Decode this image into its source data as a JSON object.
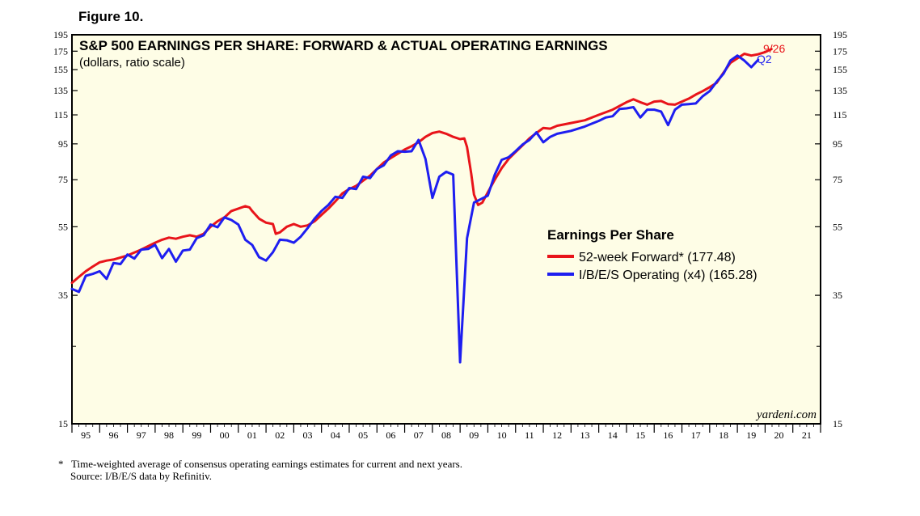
{
  "figure_label": "Figure 10.",
  "watermark": "yardeni.com",
  "footnote": {
    "line1_marker": "*",
    "line1": "Time-weighted average of consensus operating earnings estimates for current and next years.",
    "line2": "Source: I/B/E/S data by Refinitiv."
  },
  "colors": {
    "plot_background": "#fefde6",
    "forward": "#e8141a",
    "actual": "#1e1ef0"
  },
  "chart_data": {
    "type": "line",
    "scale": "log",
    "title": "S&P 500 EARNINGS PER SHARE: FORWARD & ACTUAL OPERATING EARNINGS",
    "subtitle": "(dollars, ratio scale)",
    "ylim": [
      15,
      195
    ],
    "xlim": [
      1994.5,
      2021.5
    ],
    "yticks": [
      195,
      175,
      155,
      135,
      115,
      95,
      75,
      55,
      35,
      15
    ],
    "xtick_labels": [
      "95",
      "96",
      "97",
      "98",
      "99",
      "00",
      "01",
      "02",
      "03",
      "04",
      "05",
      "06",
      "07",
      "08",
      "09",
      "10",
      "11",
      "12",
      "13",
      "14",
      "15",
      "16",
      "17",
      "18",
      "19",
      "20",
      "21"
    ],
    "legend": {
      "title": "Earnings Per Share",
      "position": "center-right",
      "entries": [
        "52-week Forward* (177.48)",
        "I/B/E/S Operating (x4) (165.28)"
      ]
    },
    "end_labels": {
      "forward": "9/26",
      "actual": "Q2"
    },
    "series": [
      {
        "name": "52-week Forward* (177.48)",
        "color": "#e8141a",
        "points": [
          [
            1994.5,
            38.0
          ],
          [
            1994.75,
            39.5
          ],
          [
            1995.0,
            41.0
          ],
          [
            1995.25,
            42.3
          ],
          [
            1995.5,
            43.5
          ],
          [
            1995.75,
            44.0
          ],
          [
            1996.0,
            44.3
          ],
          [
            1996.5,
            45.5
          ],
          [
            1997.0,
            47.3
          ],
          [
            1997.5,
            49.5
          ],
          [
            1997.75,
            50.5
          ],
          [
            1998.0,
            51.2
          ],
          [
            1998.25,
            50.8
          ],
          [
            1998.5,
            51.5
          ],
          [
            1998.75,
            52.0
          ],
          [
            1999.0,
            51.5
          ],
          [
            1999.25,
            52.5
          ],
          [
            1999.5,
            55.0
          ],
          [
            1999.75,
            57.0
          ],
          [
            2000.0,
            58.5
          ],
          [
            2000.25,
            61.0
          ],
          [
            2000.5,
            62.0
          ],
          [
            2000.75,
            63.0
          ],
          [
            2000.9,
            62.5
          ],
          [
            2001.0,
            61.0
          ],
          [
            2001.25,
            58.0
          ],
          [
            2001.5,
            56.5
          ],
          [
            2001.75,
            56.0
          ],
          [
            2001.85,
            52.5
          ],
          [
            2002.0,
            53.0
          ],
          [
            2002.25,
            55.0
          ],
          [
            2002.5,
            56.0
          ],
          [
            2002.75,
            55.0
          ],
          [
            2003.0,
            55.5
          ],
          [
            2003.25,
            57.0
          ],
          [
            2003.5,
            59.5
          ],
          [
            2003.75,
            62.0
          ],
          [
            2004.0,
            65.0
          ],
          [
            2004.25,
            68.5
          ],
          [
            2004.5,
            70.5
          ],
          [
            2004.75,
            72.0
          ],
          [
            2005.0,
            74.5
          ],
          [
            2005.25,
            77.0
          ],
          [
            2005.5,
            80.5
          ],
          [
            2005.75,
            84.0
          ],
          [
            2006.0,
            86.5
          ],
          [
            2006.25,
            89.0
          ],
          [
            2006.5,
            91.5
          ],
          [
            2006.75,
            93.5
          ],
          [
            2007.0,
            96.0
          ],
          [
            2007.25,
            99.5
          ],
          [
            2007.5,
            102.0
          ],
          [
            2007.75,
            103.0
          ],
          [
            2008.0,
            101.5
          ],
          [
            2008.25,
            99.5
          ],
          [
            2008.5,
            98.0
          ],
          [
            2008.65,
            98.5
          ],
          [
            2008.75,
            93.0
          ],
          [
            2008.9,
            78.0
          ],
          [
            2009.0,
            68.0
          ],
          [
            2009.15,
            63.5
          ],
          [
            2009.3,
            64.5
          ],
          [
            2009.5,
            69.0
          ],
          [
            2009.75,
            75.0
          ],
          [
            2010.0,
            81.0
          ],
          [
            2010.25,
            86.0
          ],
          [
            2010.5,
            90.0
          ],
          [
            2010.75,
            94.0
          ],
          [
            2011.0,
            98.5
          ],
          [
            2011.25,
            102.0
          ],
          [
            2011.5,
            105.5
          ],
          [
            2011.75,
            105.0
          ],
          [
            2012.0,
            107.0
          ],
          [
            2012.5,
            109.0
          ],
          [
            2013.0,
            111.0
          ],
          [
            2013.5,
            115.0
          ],
          [
            2014.0,
            119.0
          ],
          [
            2014.5,
            125.0
          ],
          [
            2014.75,
            127.5
          ],
          [
            2015.0,
            125.0
          ],
          [
            2015.25,
            123.0
          ],
          [
            2015.5,
            125.5
          ],
          [
            2015.75,
            126.0
          ],
          [
            2016.0,
            123.5
          ],
          [
            2016.25,
            123.0
          ],
          [
            2016.5,
            125.5
          ],
          [
            2016.75,
            128.0
          ],
          [
            2017.0,
            131.5
          ],
          [
            2017.25,
            134.5
          ],
          [
            2017.5,
            138.0
          ],
          [
            2017.75,
            142.0
          ],
          [
            2018.0,
            152.0
          ],
          [
            2018.25,
            162.0
          ],
          [
            2018.5,
            167.0
          ],
          [
            2018.75,
            172.0
          ],
          [
            2019.0,
            170.0
          ],
          [
            2019.25,
            171.5
          ],
          [
            2019.5,
            174.0
          ],
          [
            2019.73,
            177.48
          ]
        ]
      },
      {
        "name": "I/B/E/S Operating (x4) (165.28)",
        "color": "#1e1ef0",
        "points": [
          [
            1994.5,
            36.5
          ],
          [
            1994.75,
            35.8
          ],
          [
            1995.0,
            39.8
          ],
          [
            1995.25,
            40.3
          ],
          [
            1995.5,
            41.0
          ],
          [
            1995.75,
            39.0
          ],
          [
            1996.0,
            43.3
          ],
          [
            1996.25,
            43.0
          ],
          [
            1996.5,
            45.8
          ],
          [
            1996.75,
            44.6
          ],
          [
            1997.0,
            47.3
          ],
          [
            1997.25,
            47.5
          ],
          [
            1997.5,
            48.8
          ],
          [
            1997.75,
            44.7
          ],
          [
            1998.0,
            47.5
          ],
          [
            1998.25,
            43.7
          ],
          [
            1998.5,
            47.0
          ],
          [
            1998.75,
            47.3
          ],
          [
            1999.0,
            51.0
          ],
          [
            1999.25,
            52.0
          ],
          [
            1999.5,
            55.8
          ],
          [
            1999.75,
            54.8
          ],
          [
            2000.0,
            58.5
          ],
          [
            2000.25,
            57.5
          ],
          [
            2000.5,
            55.8
          ],
          [
            2000.75,
            50.5
          ],
          [
            2001.0,
            48.8
          ],
          [
            2001.25,
            45.0
          ],
          [
            2001.5,
            44.0
          ],
          [
            2001.75,
            46.5
          ],
          [
            2002.0,
            50.5
          ],
          [
            2002.25,
            50.3
          ],
          [
            2002.5,
            49.5
          ],
          [
            2002.75,
            51.5
          ],
          [
            2003.0,
            54.5
          ],
          [
            2003.25,
            58.0
          ],
          [
            2003.5,
            61.0
          ],
          [
            2003.75,
            63.5
          ],
          [
            2004.0,
            67.0
          ],
          [
            2004.25,
            66.5
          ],
          [
            2004.5,
            71.0
          ],
          [
            2004.75,
            70.5
          ],
          [
            2005.0,
            76.5
          ],
          [
            2005.25,
            75.8
          ],
          [
            2005.5,
            80.5
          ],
          [
            2005.75,
            82.5
          ],
          [
            2006.0,
            88.0
          ],
          [
            2006.25,
            90.5
          ],
          [
            2006.5,
            90.2
          ],
          [
            2006.75,
            90.5
          ],
          [
            2007.0,
            97.5
          ],
          [
            2007.25,
            86.0
          ],
          [
            2007.5,
            66.5
          ],
          [
            2007.75,
            76.5
          ],
          [
            2008.0,
            79.0
          ],
          [
            2008.25,
            77.5
          ],
          [
            2008.5,
            22.5
          ],
          [
            2008.75,
            51.0
          ],
          [
            2009.0,
            64.5
          ],
          [
            2009.25,
            66.0
          ],
          [
            2009.5,
            67.5
          ],
          [
            2009.75,
            77.5
          ],
          [
            2010.0,
            85.5
          ],
          [
            2010.25,
            87.0
          ],
          [
            2010.5,
            90.5
          ],
          [
            2010.75,
            94.5
          ],
          [
            2011.0,
            97.5
          ],
          [
            2011.25,
            102.5
          ],
          [
            2011.5,
            96.0
          ],
          [
            2011.75,
            99.5
          ],
          [
            2012.0,
            101.5
          ],
          [
            2012.5,
            103.5
          ],
          [
            2013.0,
            106.5
          ],
          [
            2013.25,
            108.5
          ],
          [
            2013.5,
            110.5
          ],
          [
            2013.75,
            113.0
          ],
          [
            2014.0,
            114.0
          ],
          [
            2014.25,
            119.5
          ],
          [
            2014.5,
            120.0
          ],
          [
            2014.75,
            121.0
          ],
          [
            2015.0,
            113.0
          ],
          [
            2015.25,
            119.0
          ],
          [
            2015.5,
            119.0
          ],
          [
            2015.75,
            117.5
          ],
          [
            2016.0,
            107.5
          ],
          [
            2016.25,
            119.0
          ],
          [
            2016.5,
            123.0
          ],
          [
            2016.75,
            123.5
          ],
          [
            2017.0,
            124.0
          ],
          [
            2017.25,
            130.0
          ],
          [
            2017.5,
            134.5
          ],
          [
            2017.75,
            143.0
          ],
          [
            2018.0,
            151.0
          ],
          [
            2018.25,
            164.5
          ],
          [
            2018.5,
            170.0
          ],
          [
            2018.75,
            164.5
          ],
          [
            2019.0,
            157.5
          ],
          [
            2019.25,
            165.28
          ]
        ]
      }
    ]
  }
}
